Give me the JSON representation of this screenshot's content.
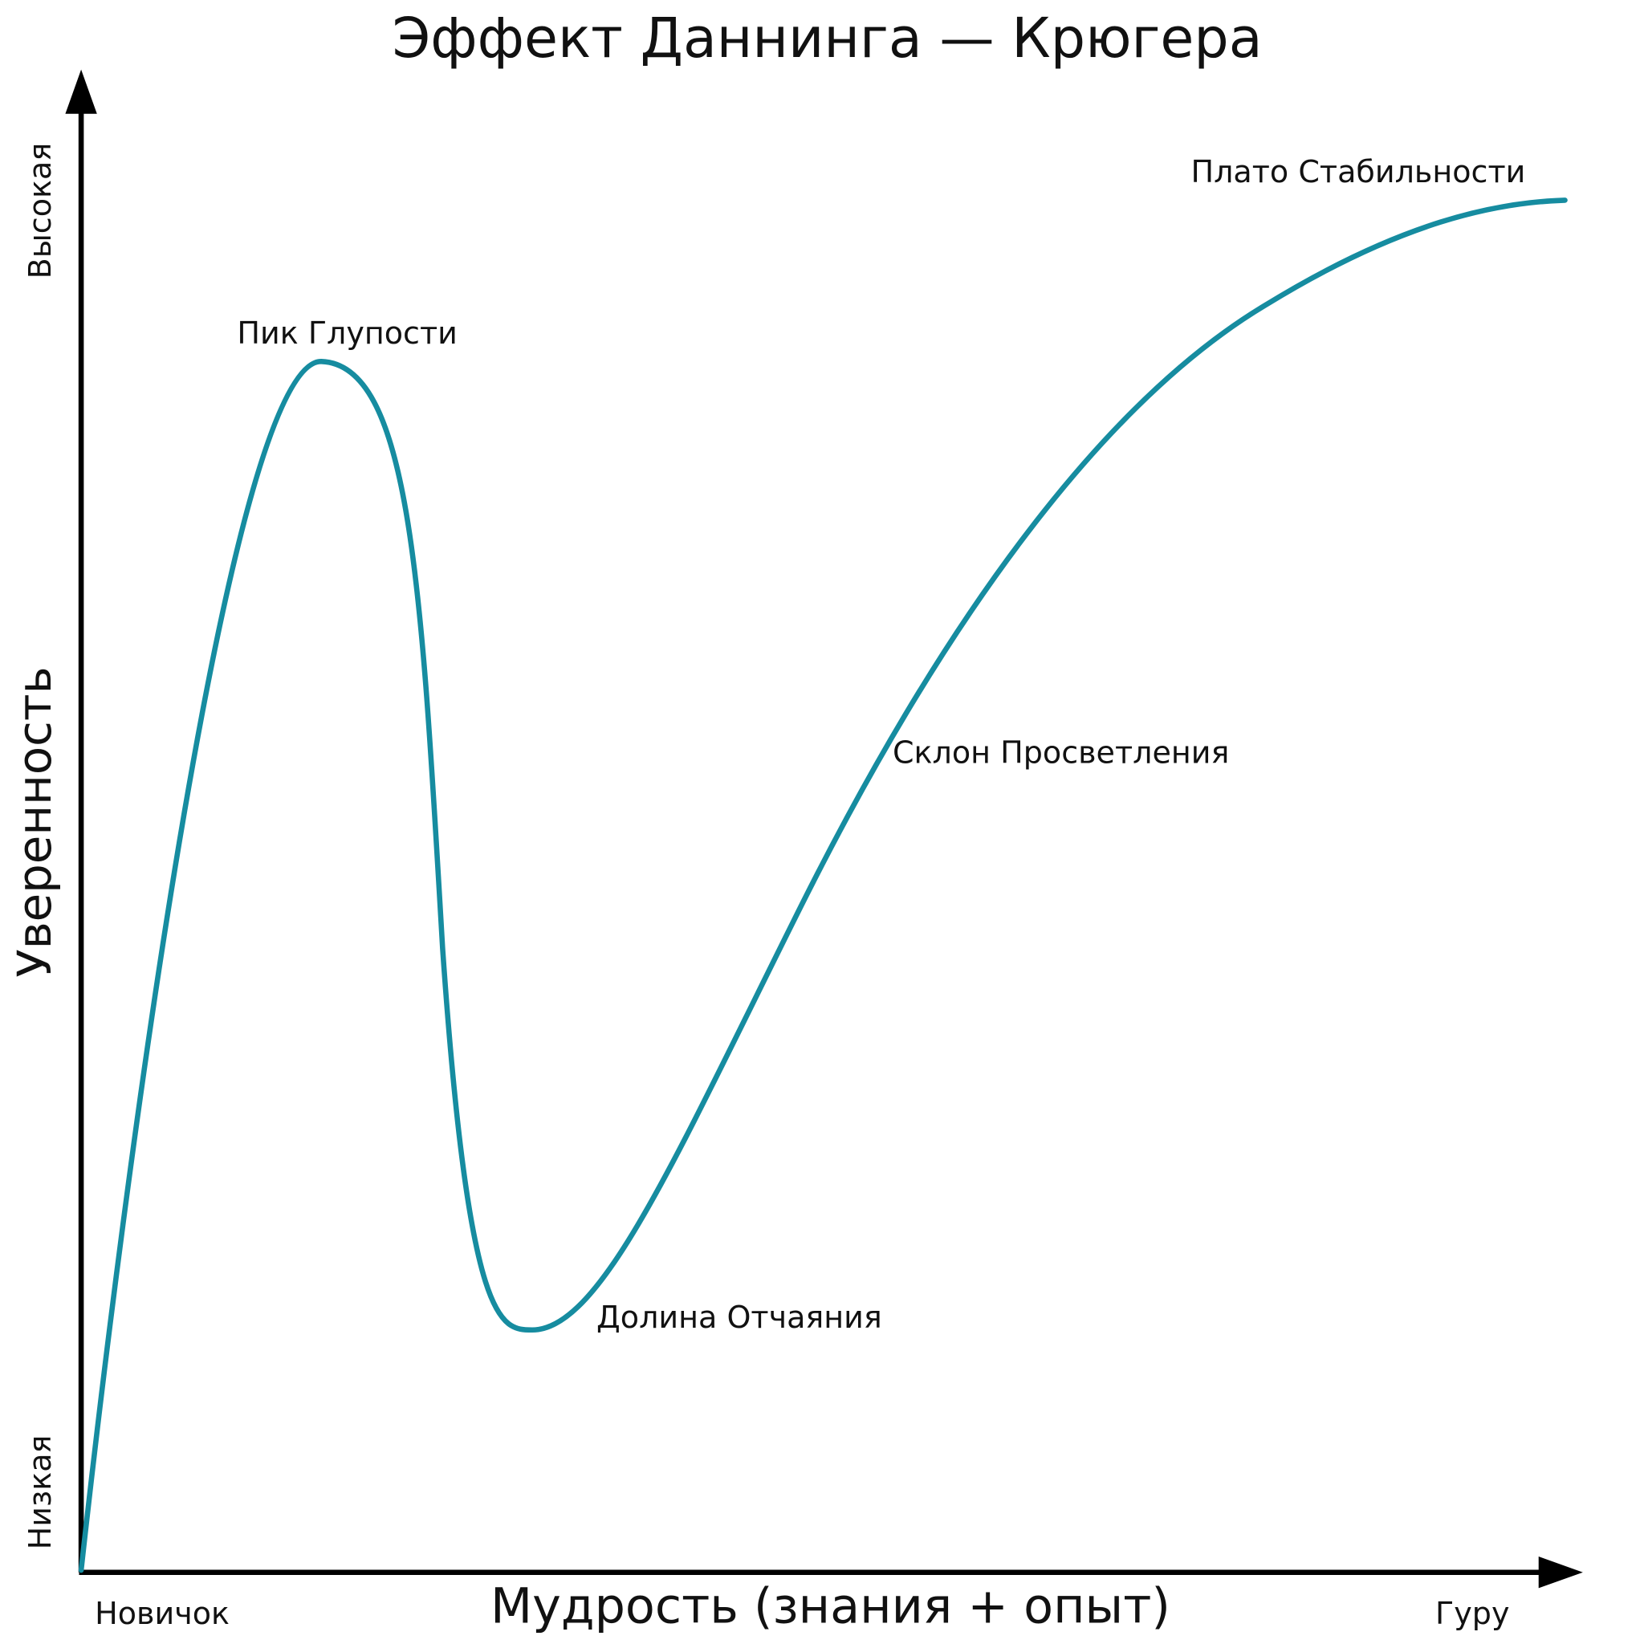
{
  "title": "Эффект Даннинга — Крюгера",
  "y_axis": {
    "label": "Уверенность",
    "low": "Низкая",
    "high": "Высокая"
  },
  "x_axis": {
    "label": "Мудрость (знания + опыт)",
    "start": "Новичок",
    "end": "Гуру"
  },
  "annotations": [
    "Пик Глупости",
    "Долина Отчаяния",
    "Склон Просветления",
    "Плато Стабильности"
  ]
}
